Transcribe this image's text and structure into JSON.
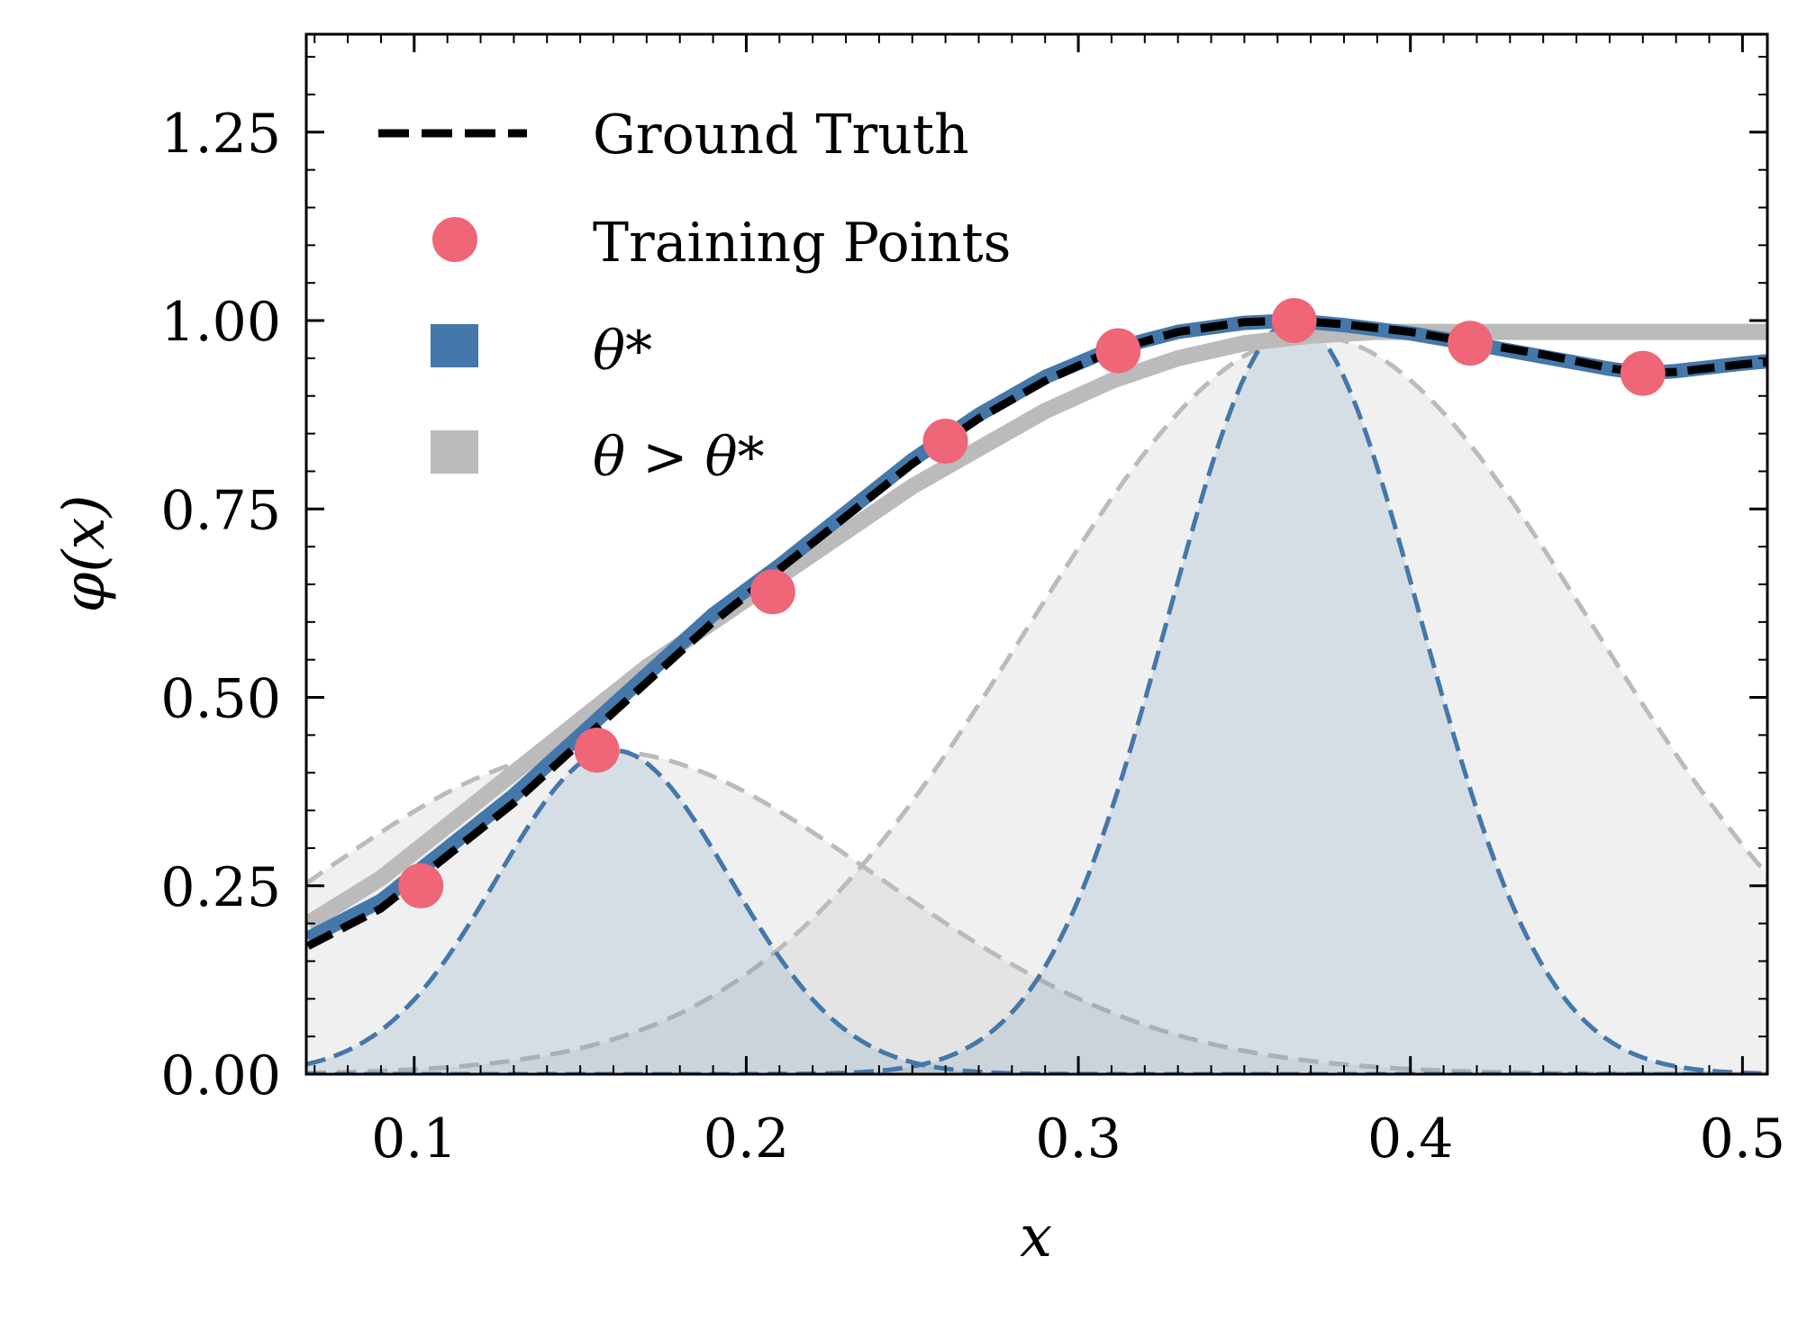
{
  "chart_data": {
    "type": "line",
    "xlabel": "x",
    "ylabel": "φ(x)",
    "xlim": [
      0.0675,
      0.5075
    ],
    "ylim": [
      0.0,
      1.38
    ],
    "x_ticks": [
      0.1,
      0.2,
      0.3,
      0.4,
      0.5
    ],
    "x_tick_labels": [
      "0.1",
      "0.2",
      "0.3",
      "0.4",
      "0.5"
    ],
    "y_ticks": [
      0.0,
      0.25,
      0.5,
      0.75,
      1.0,
      1.25
    ],
    "y_tick_labels": [
      "0.00",
      "0.25",
      "0.50",
      "0.75",
      "1.00",
      "1.25"
    ],
    "grid": false,
    "legend_position": "top-left",
    "legend": [
      {
        "label": "Ground Truth",
        "style": "dashed-line",
        "color": "#000000"
      },
      {
        "label": "Training Points",
        "style": "marker",
        "color": "#EE6677"
      },
      {
        "label": "θ*",
        "style": "patch",
        "color": "#4477AA"
      },
      {
        "label": "θ > θ*",
        "style": "patch",
        "color": "#BBBBBB"
      }
    ],
    "colors": {
      "ground_truth": "#000000",
      "training": "#EE6677",
      "theta_star": "#4477AA",
      "theta_gt": "#BBBBBB"
    },
    "training_points": {
      "x": [
        0.102,
        0.155,
        0.208,
        0.26,
        0.312,
        0.365,
        0.418,
        0.47
      ],
      "y": [
        0.25,
        0.43,
        0.64,
        0.84,
        0.96,
        1.0,
        0.97,
        0.93
      ]
    },
    "ground_truth": {
      "x": [
        0.068,
        0.09,
        0.11,
        0.13,
        0.15,
        0.17,
        0.19,
        0.21,
        0.23,
        0.25,
        0.27,
        0.29,
        0.31,
        0.33,
        0.35,
        0.365,
        0.38,
        0.4,
        0.42,
        0.44,
        0.46,
        0.47,
        0.48,
        0.5,
        0.5075
      ],
      "y": [
        0.17,
        0.22,
        0.29,
        0.36,
        0.44,
        0.52,
        0.6,
        0.67,
        0.74,
        0.81,
        0.87,
        0.92,
        0.96,
        0.985,
        0.998,
        1.0,
        0.995,
        0.985,
        0.97,
        0.955,
        0.937,
        0.93,
        0.932,
        0.942,
        0.945
      ]
    },
    "theta_star_fit": {
      "x": [
        0.068,
        0.09,
        0.11,
        0.13,
        0.15,
        0.17,
        0.19,
        0.21,
        0.23,
        0.25,
        0.27,
        0.29,
        0.31,
        0.33,
        0.35,
        0.365,
        0.38,
        0.4,
        0.42,
        0.44,
        0.46,
        0.47,
        0.48,
        0.5,
        0.5075
      ],
      "y": [
        0.18,
        0.23,
        0.3,
        0.37,
        0.45,
        0.53,
        0.61,
        0.675,
        0.745,
        0.815,
        0.875,
        0.925,
        0.962,
        0.985,
        0.997,
        1.0,
        0.994,
        0.983,
        0.968,
        0.952,
        0.936,
        0.93,
        0.933,
        0.943,
        0.946
      ]
    },
    "theta_gt_fit": {
      "x": [
        0.068,
        0.09,
        0.11,
        0.13,
        0.15,
        0.17,
        0.19,
        0.21,
        0.23,
        0.25,
        0.27,
        0.29,
        0.31,
        0.33,
        0.35,
        0.37,
        0.39,
        0.41,
        0.43,
        0.45,
        0.47,
        0.49,
        0.5075
      ],
      "y": [
        0.2,
        0.26,
        0.33,
        0.4,
        0.47,
        0.54,
        0.6,
        0.66,
        0.72,
        0.78,
        0.83,
        0.88,
        0.92,
        0.95,
        0.97,
        0.98,
        0.985,
        0.985,
        0.985,
        0.985,
        0.985,
        0.985,
        0.985
      ]
    },
    "theta_star_basis": [
      {
        "mu": 0.16,
        "sigma": 0.035,
        "amp": 0.43
      },
      {
        "mu": 0.365,
        "sigma": 0.038,
        "amp": 1.0
      }
    ],
    "theta_gt_basis": [
      {
        "mu": 0.155,
        "sigma": 0.085,
        "amp": 0.43
      },
      {
        "mu": 0.37,
        "sigma": 0.085,
        "amp": 0.98
      }
    ]
  }
}
